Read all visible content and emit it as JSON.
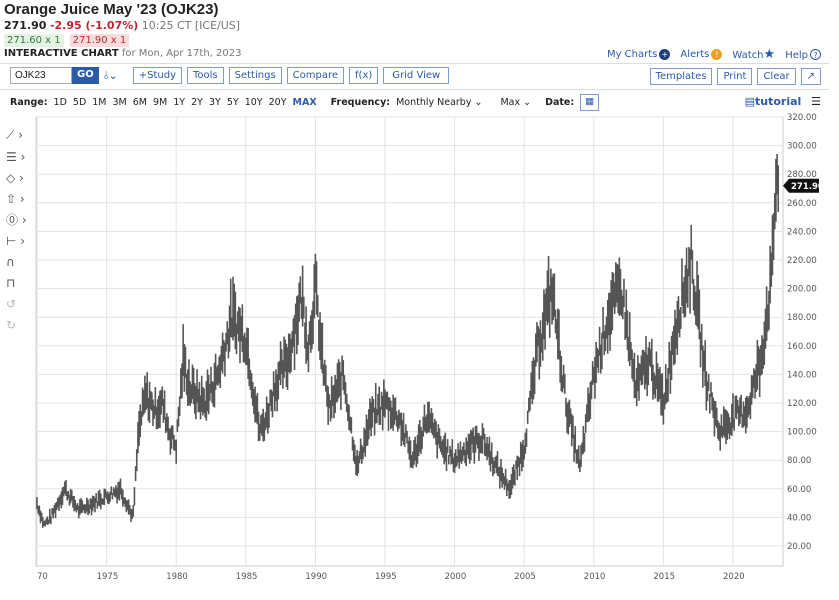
{
  "header": {
    "title": "Orange Juice May '23 (OJK23)",
    "last": "271.90",
    "change": "-2.95 (-1.07%)",
    "time": "10:25 CT [ICE/US]",
    "bid": "271.60 x 1",
    "ask": "271.90 x 1",
    "chart_label": "INTERACTIVE CHART",
    "chart_date": "for Mon, Apr 17th, 2023"
  },
  "links": {
    "my_charts": "My Charts",
    "alerts": "Alerts",
    "watch": "Watch",
    "help": "Help"
  },
  "toolbar": {
    "symbol": "OJK23",
    "go": "GO",
    "study": "+Study",
    "tools": "Tools",
    "settings": "Settings",
    "compare": "Compare",
    "fx": "f(x)",
    "grid": "Grid View",
    "templates": "Templates",
    "print": "Print",
    "clear": "Clear"
  },
  "range": {
    "label": "Range:",
    "options": [
      "1D",
      "5D",
      "1M",
      "3M",
      "6M",
      "9M",
      "1Y",
      "2Y",
      "3Y",
      "5Y",
      "10Y",
      "20Y",
      "MAX"
    ],
    "selected": "MAX",
    "freq_label": "Frequency:",
    "freq": "Monthly Nearby",
    "agg": "Max",
    "date_label": "Date:",
    "tutorial": "tutorial"
  },
  "chart_data": {
    "type": "bar",
    "ohlc": "monthly",
    "ylim": [
      20,
      320
    ],
    "yticks": [
      "20.00",
      "40.00",
      "60.00",
      "80.00",
      "100.00",
      "120.00",
      "140.00",
      "160.00",
      "180.00",
      "200.00",
      "220.00",
      "240.00",
      "260.00",
      "280.00",
      "300.00",
      "320.00"
    ],
    "xticks": [
      "70",
      "1975",
      "1980",
      "1985",
      "1990",
      "1995",
      "2000",
      "2005",
      "2010",
      "2015",
      "2020"
    ],
    "last_label": "271.90",
    "color": "#555555",
    "grid": true,
    "x": [
      1970,
      1970.5,
      1971,
      1972,
      1973,
      1974,
      1975,
      1976,
      1976.9,
      1977.3,
      1977.8,
      1978.5,
      1979,
      1979.5,
      1980,
      1980.5,
      1981,
      1982,
      1983,
      1984,
      1985,
      1986,
      1986.5,
      1987,
      1988,
      1989,
      1989.5,
      1990,
      1990.5,
      1991,
      1992,
      1993,
      1994,
      1995,
      1996,
      1997,
      1998,
      1999,
      2000,
      2001,
      2002,
      2003,
      2004,
      2005,
      2006,
      2007,
      2008,
      2009,
      2010,
      2011,
      2012,
      2013,
      2014,
      2015,
      2016,
      2017,
      2018,
      2019,
      2020,
      2021,
      2022,
      2022.8,
      2023.1,
      2023.3
    ],
    "y": [
      50,
      35,
      40,
      60,
      45,
      50,
      55,
      60,
      40,
      100,
      125,
      115,
      120,
      100,
      90,
      150,
      130,
      120,
      140,
      180,
      165,
      100,
      110,
      130,
      150,
      195,
      160,
      200,
      150,
      115,
      140,
      75,
      110,
      120,
      110,
      80,
      110,
      90,
      80,
      90,
      95,
      75,
      60,
      90,
      160,
      200,
      120,
      75,
      140,
      180,
      200,
      130,
      150,
      120,
      180,
      220,
      140,
      100,
      110,
      115,
      150,
      210,
      280,
      271.9
    ]
  }
}
